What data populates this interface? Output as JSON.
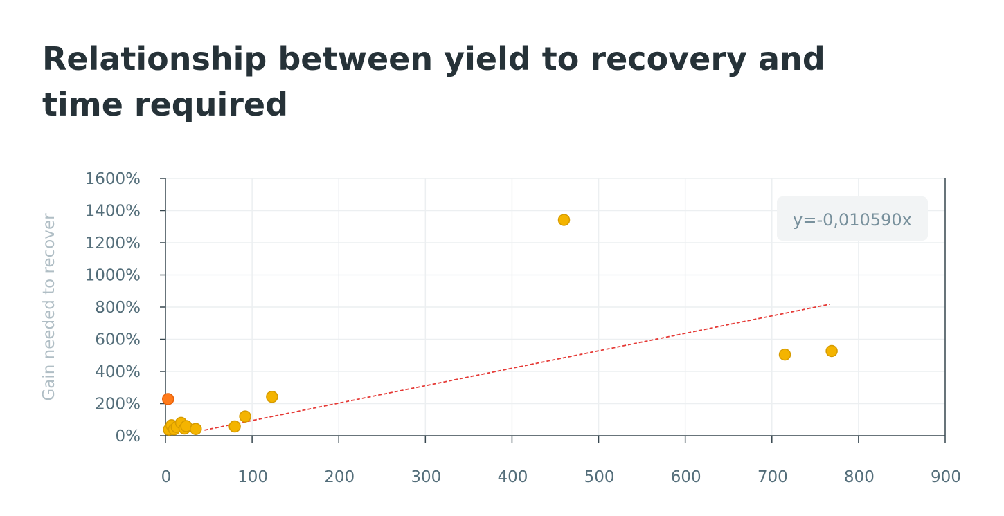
{
  "title": "Relationship between yield to recovery and time required",
  "chart_data": {
    "type": "scatter",
    "title": "Relationship between yield to recovery and time required",
    "xlabel": "",
    "ylabel": "Gain needed to recover",
    "xlim": [
      0,
      900
    ],
    "ylim": [
      0,
      1600
    ],
    "x_ticks": [
      "0",
      "100",
      "200",
      "300",
      "400",
      "500",
      "600",
      "700",
      "800",
      "900"
    ],
    "x_tick_values": [
      0,
      100,
      200,
      300,
      400,
      500,
      600,
      700,
      800,
      900
    ],
    "y_ticks": [
      "0%",
      "200%",
      "400%",
      "600%",
      "800%",
      "1000%",
      "1200%",
      "1400%",
      "1600%"
    ],
    "y_tick_values": [
      0,
      200,
      400,
      600,
      800,
      1000,
      1200,
      1400,
      1600
    ],
    "grid": true,
    "series": [
      {
        "color": "#f4b400",
        "stroke": "#d69b00",
        "points": [
          {
            "x": 4,
            "y": 38
          },
          {
            "x": 7,
            "y": 65
          },
          {
            "x": 10,
            "y": 40
          },
          {
            "x": 13,
            "y": 55
          },
          {
            "x": 18,
            "y": 80
          },
          {
            "x": 22,
            "y": 45
          },
          {
            "x": 24,
            "y": 60
          },
          {
            "x": 35,
            "y": 42
          },
          {
            "x": 80,
            "y": 58
          },
          {
            "x": 92,
            "y": 120
          },
          {
            "x": 123,
            "y": 242
          },
          {
            "x": 460,
            "y": 1342
          },
          {
            "x": 715,
            "y": 505
          },
          {
            "x": 769,
            "y": 527
          }
        ]
      },
      {
        "color": "#ff7a1a",
        "stroke": "#e8620a",
        "points": [
          {
            "x": 3,
            "y": 228
          }
        ]
      }
    ],
    "trendline": {
      "color": "#e53935",
      "style": "dashed",
      "from": {
        "x": 45,
        "y": 35
      },
      "to": {
        "x": 767,
        "y": 818
      },
      "label": "y=-0,010590x"
    }
  }
}
